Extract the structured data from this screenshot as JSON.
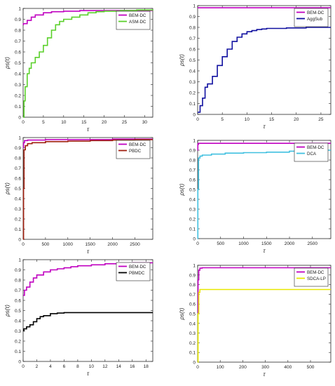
{
  "chart_data": [
    {
      "type": "line",
      "xlabel": "τ",
      "ylabel": "ρs(τ)",
      "xlim": [
        0,
        32
      ],
      "ylim": [
        0,
        1
      ],
      "xticks": [
        0,
        5,
        10,
        15,
        20,
        25,
        30
      ],
      "yticks": [
        0,
        0.1,
        0.2,
        0.3,
        0.4,
        0.5,
        0.6,
        0.7,
        0.8,
        0.9,
        1
      ],
      "grid": false,
      "legend_position": "top-right",
      "series": [
        {
          "name": "BEM-DC",
          "color": "#c000c0",
          "x": [
            0,
            0.05,
            1,
            2,
            3,
            5,
            7,
            10,
            14,
            20,
            32
          ],
          "y": [
            0.85,
            0.86,
            0.89,
            0.92,
            0.94,
            0.96,
            0.97,
            0.975,
            0.98,
            0.98,
            0.98
          ]
        },
        {
          "name": "ASM-DC",
          "color": "#5ad02a",
          "x": [
            0,
            0.2,
            0.5,
            1,
            1.5,
            2,
            3,
            4,
            5,
            6,
            7,
            8,
            9,
            10,
            12,
            14,
            16,
            18,
            20,
            24,
            28,
            32
          ],
          "y": [
            0,
            0.15,
            0.28,
            0.4,
            0.45,
            0.5,
            0.55,
            0.6,
            0.66,
            0.73,
            0.8,
            0.85,
            0.88,
            0.9,
            0.92,
            0.94,
            0.96,
            0.97,
            0.975,
            0.98,
            0.985,
            0.99
          ]
        }
      ]
    },
    {
      "type": "line",
      "xlabel": "τ",
      "ylabel": "ρs(τ)",
      "xlim": [
        0,
        27
      ],
      "ylim": [
        0,
        1
      ],
      "xticks": [
        0,
        5,
        10,
        15,
        20,
        25
      ],
      "yticks": [
        0,
        0.1,
        0.2,
        0.3,
        0.4,
        0.5,
        0.6,
        0.7,
        0.8,
        0.9,
        1
      ],
      "grid": false,
      "legend_position": "top-right",
      "series": [
        {
          "name": "BEM-DC",
          "color": "#c000c0",
          "x": [
            0,
            27
          ],
          "y": [
            0.98,
            0.98
          ]
        },
        {
          "name": "AggSub",
          "color": "#1010a0",
          "x": [
            0,
            0.5,
            1,
            1.5,
            2,
            3,
            4,
            5,
            6,
            7,
            8,
            9,
            10,
            11,
            12,
            13,
            14,
            16,
            18,
            20,
            22,
            24,
            27
          ],
          "y": [
            0.02,
            0.08,
            0.15,
            0.25,
            0.28,
            0.35,
            0.45,
            0.53,
            0.6,
            0.67,
            0.71,
            0.74,
            0.76,
            0.77,
            0.78,
            0.785,
            0.79,
            0.79,
            0.795,
            0.795,
            0.8,
            0.8,
            0.8
          ]
        }
      ]
    },
    {
      "type": "line",
      "xlabel": "τ",
      "ylabel": "ρs(τ)",
      "xlim": [
        0,
        2900
      ],
      "ylim": [
        0,
        1
      ],
      "xticks": [
        0,
        500,
        1000,
        1500,
        2000,
        2500
      ],
      "yticks": [
        0,
        0.1,
        0.2,
        0.3,
        0.4,
        0.5,
        0.6,
        0.7,
        0.8,
        0.9,
        1
      ],
      "grid": false,
      "legend_position": "top-right",
      "series": [
        {
          "name": "BEM-DC",
          "color": "#c000c0",
          "x": [
            0,
            10,
            30,
            100,
            500,
            1000,
            2000,
            2900
          ],
          "y": [
            0.9,
            0.95,
            0.97,
            0.975,
            0.98,
            0.98,
            0.985,
            0.985
          ]
        },
        {
          "name": "PBDC",
          "color": "#a02010",
          "x": [
            0,
            10,
            20,
            50,
            100,
            200,
            500,
            1000,
            1500,
            2000,
            2500,
            2900
          ],
          "y": [
            0.0,
            0.5,
            0.88,
            0.92,
            0.94,
            0.95,
            0.96,
            0.965,
            0.97,
            0.975,
            0.98,
            0.98
          ]
        }
      ]
    },
    {
      "type": "line",
      "xlabel": "τ",
      "ylabel": "ρs(τ)",
      "xlim": [
        0,
        2900
      ],
      "ylim": [
        0,
        1
      ],
      "xticks": [
        0,
        500,
        1000,
        1500,
        2000,
        2500
      ],
      "yticks": [
        0,
        0.1,
        0.2,
        0.3,
        0.4,
        0.5,
        0.6,
        0.7,
        0.8,
        0.9,
        1
      ],
      "grid": false,
      "legend_position": "top-right",
      "series": [
        {
          "name": "BEM-DC",
          "color": "#c000c0",
          "x": [
            0,
            5,
            20,
            2900
          ],
          "y": [
            0.9,
            0.96,
            0.97,
            0.97
          ]
        },
        {
          "name": "DCA",
          "color": "#40c0e0",
          "x": [
            0,
            5,
            20,
            50,
            100,
            300,
            600,
            1000,
            1500,
            2000,
            2500,
            2900
          ],
          "y": [
            0.0,
            0.5,
            0.82,
            0.84,
            0.85,
            0.86,
            0.87,
            0.875,
            0.88,
            0.89,
            0.9,
            0.9
          ]
        }
      ]
    },
    {
      "type": "line",
      "xlabel": "τ",
      "ylabel": "ρs(τ)",
      "xlim": [
        0,
        19
      ],
      "ylim": [
        0,
        1
      ],
      "xticks": [
        0,
        2,
        4,
        6,
        8,
        10,
        12,
        14,
        16,
        18
      ],
      "yticks": [
        0,
        0.1,
        0.2,
        0.3,
        0.4,
        0.5,
        0.6,
        0.7,
        0.8,
        0.9,
        1
      ],
      "grid": false,
      "legend_position": "top-right",
      "series": [
        {
          "name": "BEM-DC",
          "color": "#c000c0",
          "x": [
            0,
            0.2,
            0.5,
            1,
            1.5,
            2,
            3,
            4,
            5,
            6,
            7,
            8,
            10,
            12,
            14,
            16,
            19
          ],
          "y": [
            0.65,
            0.7,
            0.73,
            0.78,
            0.82,
            0.85,
            0.88,
            0.9,
            0.91,
            0.92,
            0.93,
            0.94,
            0.95,
            0.96,
            0.965,
            0.97,
            0.97
          ]
        },
        {
          "name": "PBMDC",
          "color": "#000000",
          "x": [
            0,
            0.1,
            0.5,
            1,
            1.5,
            2,
            2.5,
            3,
            4,
            5,
            6,
            8,
            10,
            19
          ],
          "y": [
            0.3,
            0.32,
            0.34,
            0.36,
            0.39,
            0.42,
            0.44,
            0.45,
            0.47,
            0.475,
            0.48,
            0.48,
            0.48,
            0.48
          ]
        }
      ]
    },
    {
      "type": "line",
      "xlabel": "τ",
      "ylabel": "ρs(τ)",
      "xlim": [
        0,
        590
      ],
      "ylim": [
        0,
        1
      ],
      "xticks": [
        0,
        100,
        200,
        300,
        400,
        500
      ],
      "yticks": [
        0,
        0.1,
        0.2,
        0.3,
        0.4,
        0.5,
        0.6,
        0.7,
        0.8,
        0.9,
        1
      ],
      "grid": false,
      "legend_position": "top-right",
      "series": [
        {
          "name": "BEM-DC",
          "color": "#c000c0",
          "x": [
            0,
            2,
            5,
            10,
            20,
            590
          ],
          "y": [
            0.5,
            0.85,
            0.95,
            0.97,
            0.975,
            0.975
          ]
        },
        {
          "name": "SDCA-LP",
          "color": "#e8e800",
          "x": [
            0,
            2,
            5,
            10,
            590
          ],
          "y": [
            0.0,
            0.5,
            0.72,
            0.75,
            0.75
          ]
        }
      ]
    }
  ]
}
